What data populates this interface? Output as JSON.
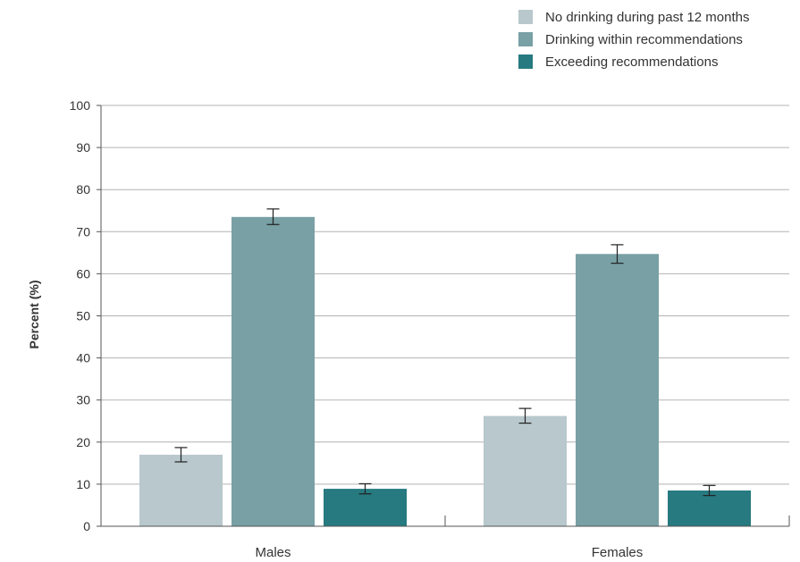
{
  "chart_data": {
    "type": "bar",
    "title": "",
    "xlabel": "",
    "ylabel": "Percent (%)",
    "ylim": [
      0,
      100
    ],
    "yticks": [
      0,
      10,
      20,
      30,
      40,
      50,
      60,
      70,
      80,
      90,
      100
    ],
    "grid": true,
    "legend_position": "top-right",
    "categories": [
      "Males",
      "Females"
    ],
    "series": [
      {
        "name": "No drinking during past 12 months",
        "color": "#b8c8cc",
        "values": [
          17,
          26.2
        ],
        "error_low": [
          15.3,
          24.5
        ],
        "error_high": [
          18.7,
          28.0
        ]
      },
      {
        "name": "Drinking within recommendations",
        "color": "#78a0a5",
        "values": [
          73.5,
          64.7
        ],
        "error_low": [
          71.7,
          62.5
        ],
        "error_high": [
          75.4,
          66.9
        ]
      },
      {
        "name": "Exceeding recommendations",
        "color": "#267a80",
        "values": [
          8.9,
          8.5
        ],
        "error_low": [
          7.7,
          7.3
        ],
        "error_high": [
          10.1,
          9.7
        ]
      }
    ]
  }
}
